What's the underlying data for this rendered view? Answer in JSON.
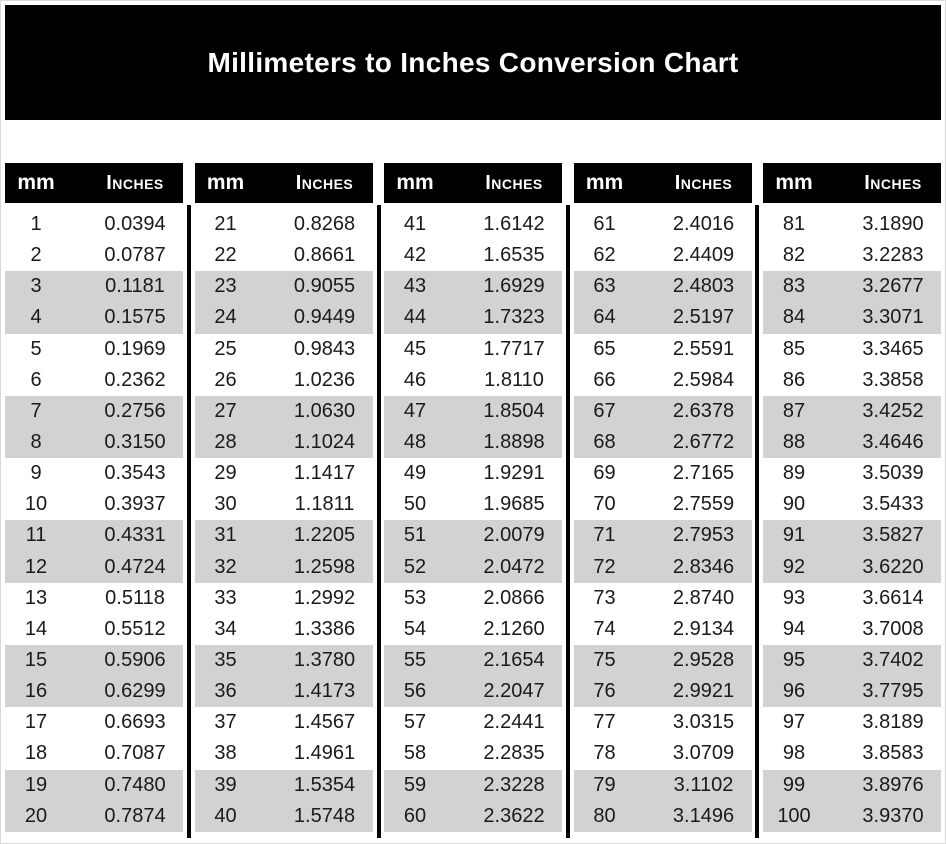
{
  "title": "Millimeters to Inches Conversion Chart",
  "table": {
    "mm_header": "mm",
    "inches_header": "Inches"
  },
  "colors": {
    "banner_bg": "#000000",
    "banner_text": "#ffffff",
    "header_bg": "#000000",
    "header_text": "#ffffff",
    "row_bg": "#ffffff",
    "row_alt_bg": "#d2d2d2",
    "divider": "#000000",
    "text": "#1a1a1a"
  },
  "chart_data": {
    "type": "table",
    "title": "Millimeters to Inches Conversion Chart",
    "columns": [
      "mm",
      "Inches"
    ],
    "layout": {
      "column_groups": 5,
      "rows_per_group": 20,
      "row_banding": "pairs of two rows alternate white and gray starting with white"
    },
    "rows": [
      [
        1,
        "0.0394"
      ],
      [
        2,
        "0.0787"
      ],
      [
        3,
        "0.1181"
      ],
      [
        4,
        "0.1575"
      ],
      [
        5,
        "0.1969"
      ],
      [
        6,
        "0.2362"
      ],
      [
        7,
        "0.2756"
      ],
      [
        8,
        "0.3150"
      ],
      [
        9,
        "0.3543"
      ],
      [
        10,
        "0.3937"
      ],
      [
        11,
        "0.4331"
      ],
      [
        12,
        "0.4724"
      ],
      [
        13,
        "0.5118"
      ],
      [
        14,
        "0.5512"
      ],
      [
        15,
        "0.5906"
      ],
      [
        16,
        "0.6299"
      ],
      [
        17,
        "0.6693"
      ],
      [
        18,
        "0.7087"
      ],
      [
        19,
        "0.7480"
      ],
      [
        20,
        "0.7874"
      ],
      [
        21,
        "0.8268"
      ],
      [
        22,
        "0.8661"
      ],
      [
        23,
        "0.9055"
      ],
      [
        24,
        "0.9449"
      ],
      [
        25,
        "0.9843"
      ],
      [
        26,
        "1.0236"
      ],
      [
        27,
        "1.0630"
      ],
      [
        28,
        "1.1024"
      ],
      [
        29,
        "1.1417"
      ],
      [
        30,
        "1.1811"
      ],
      [
        31,
        "1.2205"
      ],
      [
        32,
        "1.2598"
      ],
      [
        33,
        "1.2992"
      ],
      [
        34,
        "1.3386"
      ],
      [
        35,
        "1.3780"
      ],
      [
        36,
        "1.4173"
      ],
      [
        37,
        "1.4567"
      ],
      [
        38,
        "1.4961"
      ],
      [
        39,
        "1.5354"
      ],
      [
        40,
        "1.5748"
      ],
      [
        41,
        "1.6142"
      ],
      [
        42,
        "1.6535"
      ],
      [
        43,
        "1.6929"
      ],
      [
        44,
        "1.7323"
      ],
      [
        45,
        "1.7717"
      ],
      [
        46,
        "1.8110"
      ],
      [
        47,
        "1.8504"
      ],
      [
        48,
        "1.8898"
      ],
      [
        49,
        "1.9291"
      ],
      [
        50,
        "1.9685"
      ],
      [
        51,
        "2.0079"
      ],
      [
        52,
        "2.0472"
      ],
      [
        53,
        "2.0866"
      ],
      [
        54,
        "2.1260"
      ],
      [
        55,
        "2.1654"
      ],
      [
        56,
        "2.2047"
      ],
      [
        57,
        "2.2441"
      ],
      [
        58,
        "2.2835"
      ],
      [
        59,
        "2.3228"
      ],
      [
        60,
        "2.3622"
      ],
      [
        61,
        "2.4016"
      ],
      [
        62,
        "2.4409"
      ],
      [
        63,
        "2.4803"
      ],
      [
        64,
        "2.5197"
      ],
      [
        65,
        "2.5591"
      ],
      [
        66,
        "2.5984"
      ],
      [
        67,
        "2.6378"
      ],
      [
        68,
        "2.6772"
      ],
      [
        69,
        "2.7165"
      ],
      [
        70,
        "2.7559"
      ],
      [
        71,
        "2.7953"
      ],
      [
        72,
        "2.8346"
      ],
      [
        73,
        "2.8740"
      ],
      [
        74,
        "2.9134"
      ],
      [
        75,
        "2.9528"
      ],
      [
        76,
        "2.9921"
      ],
      [
        77,
        "3.0315"
      ],
      [
        78,
        "3.0709"
      ],
      [
        79,
        "3.1102"
      ],
      [
        80,
        "3.1496"
      ],
      [
        81,
        "3.1890"
      ],
      [
        82,
        "3.2283"
      ],
      [
        83,
        "3.2677"
      ],
      [
        84,
        "3.3071"
      ],
      [
        85,
        "3.3465"
      ],
      [
        86,
        "3.3858"
      ],
      [
        87,
        "3.4252"
      ],
      [
        88,
        "3.4646"
      ],
      [
        89,
        "3.5039"
      ],
      [
        90,
        "3.5433"
      ],
      [
        91,
        "3.5827"
      ],
      [
        92,
        "3.6220"
      ],
      [
        93,
        "3.6614"
      ],
      [
        94,
        "3.7008"
      ],
      [
        95,
        "3.7402"
      ],
      [
        96,
        "3.7795"
      ],
      [
        97,
        "3.8189"
      ],
      [
        98,
        "3.8583"
      ],
      [
        99,
        "3.8976"
      ],
      [
        100,
        "3.9370"
      ]
    ]
  }
}
